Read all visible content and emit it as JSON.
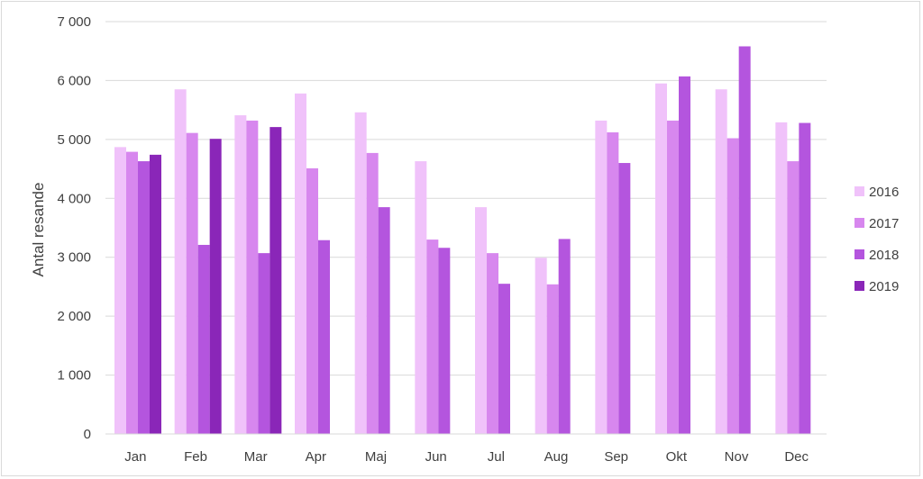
{
  "chart_data": {
    "type": "bar",
    "title": "",
    "xlabel": "",
    "ylabel": "Antal resande",
    "ylim": [
      0,
      7000
    ],
    "yticks": [
      0,
      1000,
      2000,
      3000,
      4000,
      5000,
      6000,
      7000
    ],
    "ytick_labels": [
      "0",
      "1 000",
      "2 000",
      "3 000",
      "4 000",
      "5 000",
      "6 000",
      "7 000"
    ],
    "grid": true,
    "legend_position": "right",
    "categories": [
      "Jan",
      "Feb",
      "Mar",
      "Apr",
      "Maj",
      "Jun",
      "Jul",
      "Aug",
      "Sep",
      "Okt",
      "Nov",
      "Dec"
    ],
    "series": [
      {
        "name": "2016",
        "color": "#f0c2fa",
        "values": [
          4870,
          5850,
          5410,
          5780,
          5460,
          4630,
          3850,
          2990,
          5320,
          5950,
          5850,
          5290
        ]
      },
      {
        "name": "2017",
        "color": "#d787ee",
        "values": [
          4790,
          5110,
          5320,
          4510,
          4770,
          3300,
          3070,
          2540,
          5120,
          5320,
          5020,
          4630
        ]
      },
      {
        "name": "2018",
        "color": "#b455de",
        "values": [
          4630,
          3210,
          3070,
          3290,
          3850,
          3160,
          2550,
          3310,
          4600,
          6070,
          6580,
          5280
        ]
      },
      {
        "name": "2019",
        "color": "#8a26b8",
        "values": [
          4740,
          5010,
          5210,
          null,
          null,
          null,
          null,
          null,
          null,
          null,
          null,
          null
        ]
      }
    ]
  }
}
